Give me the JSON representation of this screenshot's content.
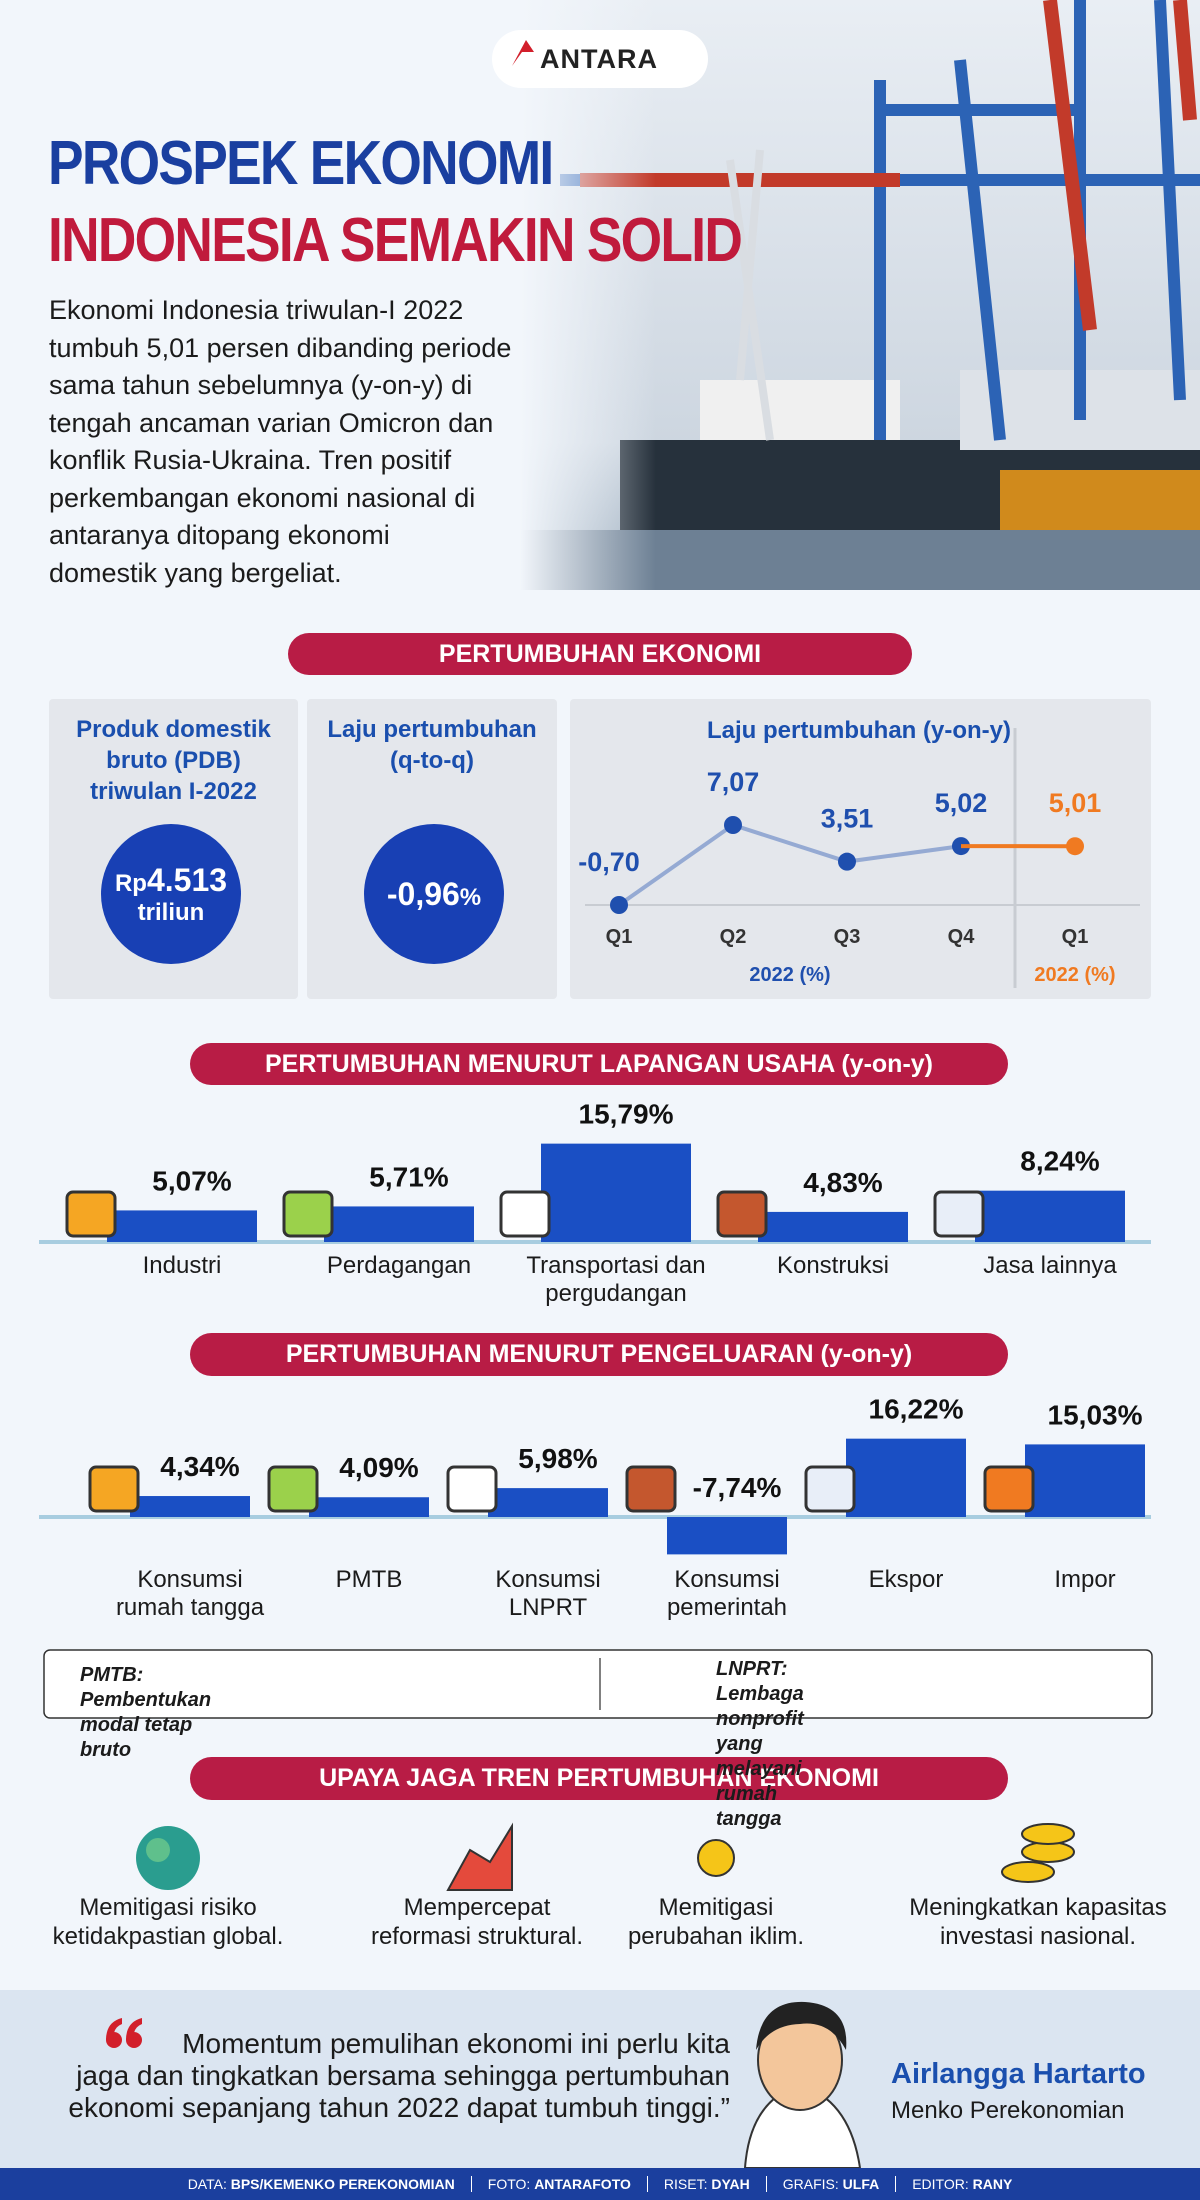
{
  "logo": "ANTARA",
  "title": {
    "line1": "PROSPEK EKONOMI",
    "line2": "INDONESIA SEMAKIN SOLID"
  },
  "intro": [
    "Ekonomi Indonesia triwulan-I 2022",
    "tumbuh 5,01 persen dibanding periode",
    "sama tahun sebelumnya (y-on-y) di",
    "tengah ancaman varian Omicron dan",
    "konflik Rusia-Ukraina. Tren positif",
    "perkembangan ekonomi nasional di",
    "antaranya ditopang ekonomi",
    "domestik yang bergeliat."
  ],
  "sections": [
    "PERTUMBUHAN EKONOMI",
    "UPAYA JAGA TREN PERTUMBUHAN EKONOMI"
  ],
  "pdb": {
    "label": [
      "Produk domestik",
      "bruto (PDB)",
      "triwulan I-2022"
    ],
    "currency": "Rp",
    "value": "4.513",
    "unit": "triliun"
  },
  "qtoq": {
    "label": [
      "Laju pertumbuhan",
      "(q-to-q)"
    ],
    "value": "-0,96",
    "unit": "%"
  },
  "chart_data": [
    {
      "type": "line",
      "title": "Laju pertumbuhan (y-on-y)",
      "categories": [
        "Q1",
        "Q2",
        "Q3",
        "Q4",
        "Q1"
      ],
      "series": [
        {
          "name": "2022 (%)",
          "color": "#1f4fae",
          "values": [
            -0.7,
            7.07,
            3.51,
            5.02,
            null
          ],
          "value_labels": [
            "-0,70",
            "7,07",
            "3,51",
            "5,02",
            null
          ]
        },
        {
          "name": "2022 (%)",
          "color": "#f07a21",
          "values": [
            null,
            null,
            null,
            5.02,
            5.01
          ],
          "value_labels": [
            null,
            null,
            null,
            null,
            "5,01"
          ]
        }
      ]
    },
    {
      "type": "bar",
      "title": "PERTUMBUHAN MENURUT LAPANGAN USAHA (y-on-y)",
      "color": "#1a4fc4",
      "categories": [
        "Industri",
        "Perdagangan",
        "Transportasi dan pergudangan",
        "Konstruksi",
        "Jasa lainnya"
      ],
      "values": [
        5.07,
        5.71,
        15.79,
        4.83,
        8.24
      ],
      "value_labels": [
        "5,07%",
        "5,71%",
        "15,79%",
        "4,83%",
        "8,24%"
      ]
    },
    {
      "type": "bar",
      "title": "PERTUMBUHAN MENURUT PENGELUARAN (y-on-y)",
      "color": "#1a4fc4",
      "categories": [
        "Konsumsi rumah tangga",
        "PMTB",
        "Konsumsi LNPRT",
        "Konsumsi pemerintah",
        "Ekspor",
        "Impor"
      ],
      "values": [
        4.34,
        4.09,
        5.98,
        -7.74,
        16.22,
        15.03
      ],
      "value_labels": [
        "4,34%",
        "4,09%",
        "5,98%",
        "-7,74%",
        "16,22%",
        "15,03%"
      ]
    }
  ],
  "notes": [
    [
      "PMTB: Pembentukan modal tetap bruto"
    ],
    [
      "LNPRT: Lembaga nonprofit yang",
      "melayani rumah tangga"
    ]
  ],
  "efforts": [
    [
      "Memitigasi risiko",
      "ketidakpastian global."
    ],
    [
      "Mempercepat",
      "reformasi struktural."
    ],
    [
      "Memitigasi",
      "perubahan iklim."
    ],
    [
      "Meningkatkan kapasitas",
      "investasi nasional."
    ]
  ],
  "quote": {
    "lines": [
      "Momentum pemulihan ekonomi ini perlu kita",
      "jaga dan tingkatkan bersama sehingga pertumbuhan",
      "ekonomi sepanjang tahun 2022 dapat tumbuh tinggi.”"
    ],
    "name": "Airlangga Hartarto",
    "role": "Menko Perekonomian"
  },
  "credits": [
    {
      "label": "DATA:",
      "value": "BPS/KEMENKO PEREKONOMIAN"
    },
    {
      "label": "FOTO:",
      "value": "ANTARAFOTO"
    },
    {
      "label": "RISET:",
      "value": "DYAH"
    },
    {
      "label": "GRAFIS:",
      "value": "ULFA"
    },
    {
      "label": "EDITOR:",
      "value": "RANY"
    }
  ]
}
